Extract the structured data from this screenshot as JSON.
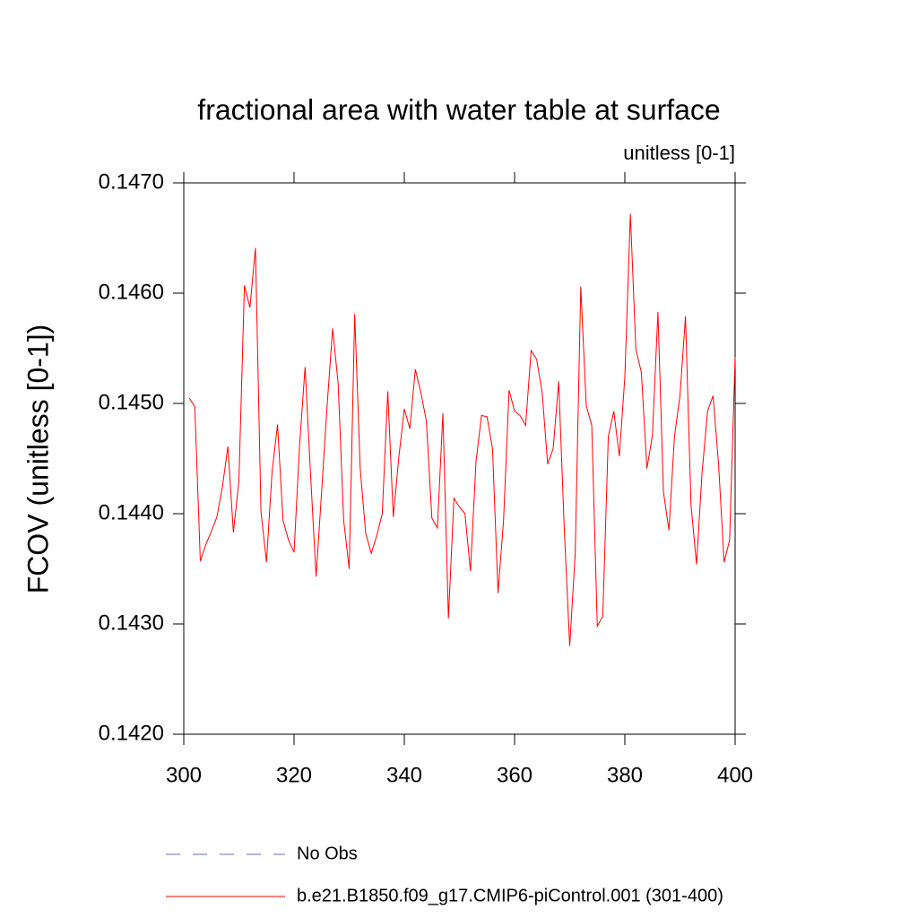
{
  "chart_data": {
    "type": "line",
    "title": "fractional area with water table at surface",
    "subtitle": "unitless [0-1]",
    "y_label": "FCOV  (unitless [0-1])",
    "x": [
      301,
      302,
      303,
      304,
      305,
      306,
      307,
      308,
      309,
      310,
      311,
      312,
      313,
      314,
      315,
      316,
      317,
      318,
      319,
      320,
      321,
      322,
      323,
      324,
      325,
      326,
      327,
      328,
      329,
      330,
      331,
      332,
      333,
      334,
      335,
      336,
      337,
      338,
      339,
      340,
      341,
      342,
      343,
      344,
      345,
      346,
      347,
      348,
      349,
      350,
      351,
      352,
      353,
      354,
      355,
      356,
      357,
      358,
      359,
      360,
      361,
      362,
      363,
      364,
      365,
      366,
      367,
      368,
      369,
      370,
      371,
      372,
      373,
      374,
      375,
      376,
      377,
      378,
      379,
      380,
      381,
      382,
      383,
      384,
      385,
      386,
      387,
      388,
      389,
      390,
      391,
      392,
      393,
      394,
      395,
      396,
      397,
      398,
      399,
      400
    ],
    "series": [
      {
        "name": "b.e21.B1850.f09_g17.CMIP6-piControl.001 (301-400)",
        "color": "#ff0000",
        "values": [
          0.14505,
          0.14497,
          0.14357,
          0.14372,
          0.14384,
          0.14397,
          0.14424,
          0.14461,
          0.14383,
          0.1443,
          0.14607,
          0.14587,
          0.14641,
          0.14402,
          0.14356,
          0.14437,
          0.14481,
          0.14394,
          0.14376,
          0.14365,
          0.14462,
          0.14533,
          0.14435,
          0.14343,
          0.1442,
          0.14498,
          0.14568,
          0.14518,
          0.14394,
          0.1435,
          0.14581,
          0.14441,
          0.14382,
          0.14364,
          0.1438,
          0.144,
          0.14511,
          0.14397,
          0.14451,
          0.14495,
          0.14477,
          0.14531,
          0.1451,
          0.14484,
          0.14396,
          0.14387,
          0.14491,
          0.14305,
          0.14414,
          0.14406,
          0.144,
          0.14348,
          0.14447,
          0.14489,
          0.14488,
          0.14459,
          0.14328,
          0.14394,
          0.14512,
          0.14493,
          0.14489,
          0.1448,
          0.14548,
          0.1454,
          0.1451,
          0.14445,
          0.14459,
          0.1452,
          0.14388,
          0.1428,
          0.14364,
          0.14606,
          0.14498,
          0.1448,
          0.14298,
          0.14307,
          0.1447,
          0.14493,
          0.14452,
          0.14524,
          0.14672,
          0.14549,
          0.14528,
          0.14441,
          0.14471,
          0.14583,
          0.1442,
          0.14385,
          0.1447,
          0.14507,
          0.14579,
          0.14408,
          0.14354,
          0.14437,
          0.14493,
          0.14507,
          0.14445,
          0.14356,
          0.14376,
          0.14542
        ]
      }
    ],
    "reference_entries": [
      {
        "name": "No Obs",
        "color": "#6a6ab8",
        "dash": "dashed"
      }
    ],
    "xlim": [
      300,
      400
    ],
    "xticks": [
      300,
      320,
      340,
      360,
      380,
      400
    ],
    "ylim": [
      0.142,
      0.147
    ],
    "yticks": [
      {
        "value": 0.142,
        "label": "0.1420"
      },
      {
        "value": 0.143,
        "label": "0.1430"
      },
      {
        "value": 0.144,
        "label": "0.1440"
      },
      {
        "value": 0.145,
        "label": "0.1450"
      },
      {
        "value": 0.146,
        "label": "0.1460"
      },
      {
        "value": 0.147,
        "label": "0.1470"
      }
    ]
  }
}
